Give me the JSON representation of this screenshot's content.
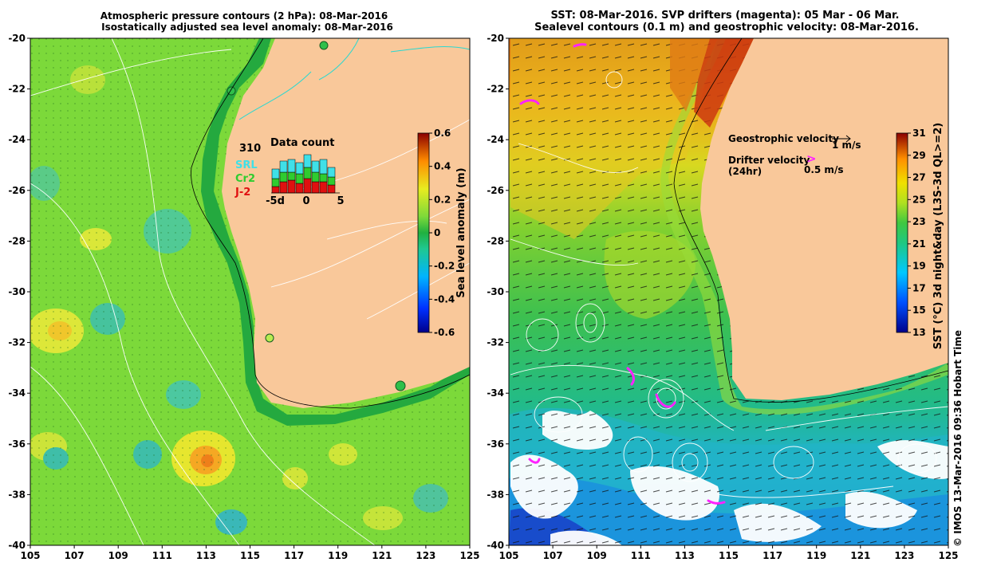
{
  "left_panel": {
    "title_line1": "Atmospheric pressure contours (2 hPa): 08-Mar-2016",
    "title_line2": "Isostatically adjusted sea level anomaly: 08-Mar-2016",
    "x_ticks": [
      "105",
      "107",
      "109",
      "111",
      "113",
      "115",
      "117",
      "119",
      "121",
      "123",
      "125"
    ],
    "y_ticks": [
      "-20",
      "-22",
      "-24",
      "-26",
      "-28",
      "-30",
      "-32",
      "-34",
      "-36",
      "-38",
      "-40"
    ],
    "colorbar_label": "Sea level anomaly (m)",
    "colorbar_ticks": [
      "0.6",
      "0.4",
      "0.2",
      "0",
      "-0.2",
      "-0.4",
      "-0.6"
    ],
    "colors": {
      "ocean": "#7cd93a",
      "land": "#f9c89a",
      "coast": "#24a93f"
    },
    "inset": {
      "count": "310",
      "title": "Data count",
      "legend": [
        {
          "name": "SRL",
          "color": "#3fe0e8"
        },
        {
          "name": "Cr2",
          "color": "#2fcc2f"
        },
        {
          "name": "J-2",
          "color": "#e01010"
        }
      ],
      "x_labels": [
        "-5d",
        "0",
        "5"
      ]
    }
  },
  "right_panel": {
    "title_line1": "SST: 08-Mar-2016. SVP drifters (magenta): 05 Mar - 06 Mar.",
    "title_line2": "Sealevel contours (0.1 m) and geostrophic velocity: 08-Mar-2016.",
    "x_ticks": [
      "105",
      "107",
      "109",
      "111",
      "113",
      "115",
      "117",
      "119",
      "121",
      "123",
      "125"
    ],
    "y_ticks": [
      "-20",
      "-22",
      "-24",
      "-26",
      "-28",
      "-30",
      "-32",
      "-34",
      "-36",
      "-38",
      "-40"
    ],
    "colorbar_label": "SST (°C) 3d night&day (L3S-3d QL>=2)",
    "colorbar_ticks": [
      "31",
      "29",
      "27",
      "25",
      "23",
      "21",
      "19",
      "17",
      "15",
      "13"
    ],
    "legend": {
      "geo_label": "Geostrophic velocity",
      "geo_scale": "1 m/s",
      "drifter_label": "Drifter velocity",
      "drifter_sub": "(24hr)",
      "drifter_scale": "0.5 m/s",
      "drifter_symbol": ">"
    },
    "colors": {
      "land": "#f9c89a",
      "drifter": "#ff22ff"
    }
  },
  "credit": "© IMOS 13-Mar-2016 09:36 Hobart Time"
}
